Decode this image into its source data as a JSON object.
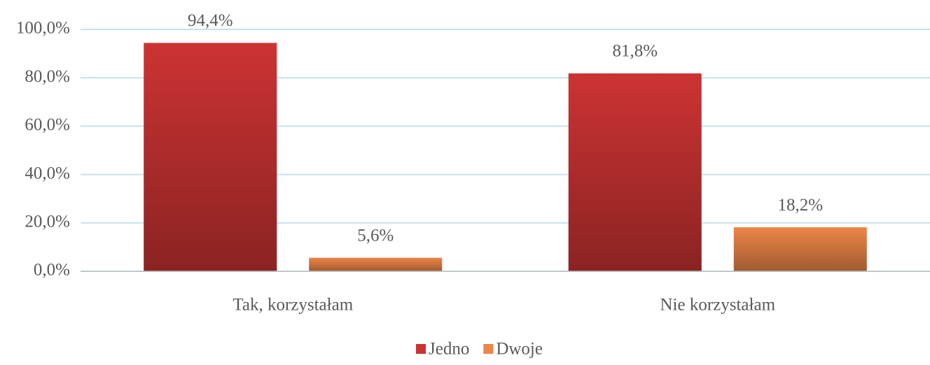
{
  "chart_data": {
    "type": "bar",
    "categories": [
      "Tak, korzystałam",
      "Nie korzystałam"
    ],
    "series": [
      {
        "name": "Jedno",
        "color": "#cc3333",
        "values": [
          94.4,
          81.8
        ],
        "value_labels": [
          "94,4%",
          "81,8%"
        ]
      },
      {
        "name": "Dwoje",
        "color": "#ec8548",
        "values": [
          5.6,
          18.2
        ],
        "value_labels": [
          "5,6%",
          "18,2%"
        ]
      }
    ],
    "ylim": [
      0,
      100
    ],
    "yticks": [
      {
        "value": 0,
        "label": "0,0%"
      },
      {
        "value": 20,
        "label": "20,0%"
      },
      {
        "value": 40,
        "label": "40,0%"
      },
      {
        "value": 60,
        "label": "60,0%"
      },
      {
        "value": 80,
        "label": "80,0%"
      },
      {
        "value": 100,
        "label": "100,0%"
      }
    ],
    "grid": true,
    "legend": "bottom"
  }
}
